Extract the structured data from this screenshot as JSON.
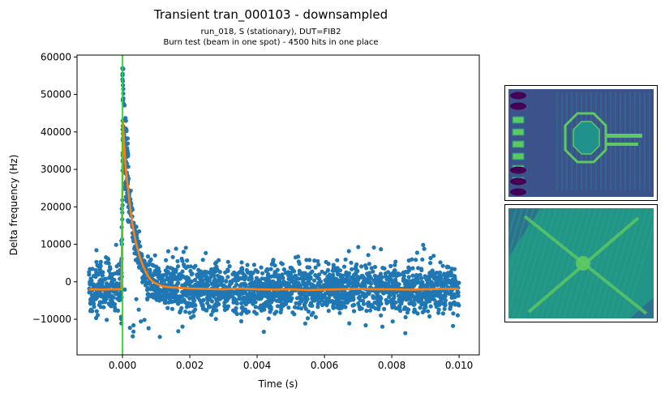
{
  "figure": {
    "title": "Transient tran_000103 - downsampled",
    "subtitle_line1": "run_018, S (stationary), DUT=FIB2",
    "subtitle_line2": "Burn test (beam in one spot) - 4500 hits in one place"
  },
  "chart_data": {
    "type": "scatter",
    "title": "Transient tran_000103 - downsampled",
    "xlabel": "Time (s)",
    "ylabel": "Delta frequency (Hz)",
    "xlim": [
      -0.00135,
      0.0106
    ],
    "ylim": [
      -19500,
      60500
    ],
    "xticks": [
      0.0,
      0.002,
      0.004,
      0.006,
      0.008,
      0.01
    ],
    "xtick_labels": [
      "0.000",
      "0.002",
      "0.004",
      "0.006",
      "0.008",
      "0.010"
    ],
    "yticks": [
      -10000,
      0,
      10000,
      20000,
      30000,
      40000,
      50000,
      60000
    ],
    "ytick_labels": [
      "−10000",
      "0",
      "10000",
      "20000",
      "30000",
      "40000",
      "50000",
      "60000"
    ],
    "grid": false,
    "legend": "none",
    "marker_line": {
      "x": 0.0,
      "color": "#22dd22"
    },
    "series": [
      {
        "style": "scatter",
        "color": "#1f77b4",
        "x_range": [
          -0.001,
          0.01
        ],
        "baseline": -2000,
        "noise_band": [
          -10500,
          7500
        ],
        "outlier_range": [
          -15000,
          10500
        ],
        "peak": {
          "x": 1e-05,
          "y": 57000
        },
        "envelope": [
          [
            -0.001,
            -2000
          ],
          [
            -3e-05,
            -2000
          ],
          [
            0.0,
            24000
          ],
          [
            1e-05,
            40000
          ],
          [
            0.0001,
            30000
          ],
          [
            0.0002,
            22000
          ],
          [
            0.0003,
            15000
          ],
          [
            0.0004,
            10000
          ],
          [
            0.0006,
            4000
          ],
          [
            0.0008,
            1000
          ],
          [
            0.001,
            -1000
          ],
          [
            0.002,
            -2000
          ],
          [
            0.01,
            -2000
          ]
        ]
      },
      {
        "style": "line",
        "color": "#ff7f0e",
        "points": [
          [
            -0.001,
            -2100
          ],
          [
            -0.0008,
            -2000
          ],
          [
            -0.0006,
            -2100
          ],
          [
            -0.0004,
            -2000
          ],
          [
            -0.0002,
            -2000
          ],
          [
            -3e-05,
            -2000
          ],
          [
            -1e-05,
            15000
          ],
          [
            0.0,
            26000
          ],
          [
            1e-05,
            43000
          ],
          [
            3e-05,
            40000
          ],
          [
            6e-05,
            35000
          ],
          [
            0.0001,
            30000
          ],
          [
            0.00015,
            26000
          ],
          [
            0.0002,
            22000
          ],
          [
            0.0003,
            15000
          ],
          [
            0.0004,
            10500
          ],
          [
            0.0005,
            7000
          ],
          [
            0.0006,
            4500
          ],
          [
            0.0007,
            2500
          ],
          [
            0.0008,
            1000
          ],
          [
            0.0009,
            0
          ],
          [
            0.001,
            -500
          ],
          [
            0.0012,
            -1200
          ],
          [
            0.0015,
            -1500
          ],
          [
            0.002,
            -1800
          ],
          [
            0.0025,
            -1900
          ],
          [
            0.003,
            -2000
          ],
          [
            0.0035,
            -1800
          ],
          [
            0.004,
            -2000
          ],
          [
            0.0045,
            -2100
          ],
          [
            0.005,
            -2000
          ],
          [
            0.0055,
            -2200
          ],
          [
            0.006,
            -2100
          ],
          [
            0.0065,
            -2000
          ],
          [
            0.007,
            -1900
          ],
          [
            0.0075,
            -2000
          ],
          [
            0.008,
            -2000
          ],
          [
            0.0085,
            -2100
          ],
          [
            0.009,
            -2000
          ],
          [
            0.0095,
            -1900
          ],
          [
            0.01,
            -1900
          ]
        ]
      }
    ]
  },
  "insets": [
    {
      "name": "device-layout-image",
      "palette": [
        "#3b528b",
        "#21918c",
        "#5ec962",
        "#440154"
      ]
    },
    {
      "name": "hit-map-image",
      "palette": [
        "#2c728e",
        "#28ae80",
        "#5ec962",
        "#20a386"
      ]
    }
  ]
}
